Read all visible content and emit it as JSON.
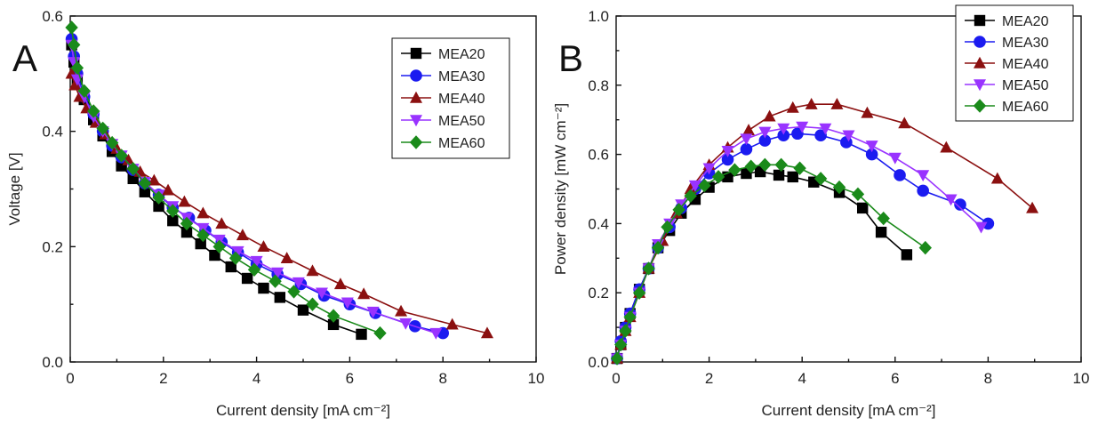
{
  "chart_data": [
    {
      "type": "line",
      "panel_label": "A",
      "xlabel": "Current density [mA cm⁻²]",
      "ylabel": "Voltage [V]",
      "xlim": [
        0,
        10
      ],
      "ylim": [
        0,
        0.6
      ],
      "xticks": [
        "0",
        "2",
        "4",
        "6",
        "8",
        "10"
      ],
      "yticks": [
        "0.0",
        "0.2",
        "0.4",
        "0.6"
      ],
      "legend_position": "top-right",
      "grid": false,
      "series": [
        {
          "name": "MEA20",
          "color": "#000000",
          "marker": "square",
          "points": [
            [
              0.03,
              0.55
            ],
            [
              0.08,
              0.52
            ],
            [
              0.15,
              0.49
            ],
            [
              0.3,
              0.455
            ],
            [
              0.5,
              0.42
            ],
            [
              0.7,
              0.392
            ],
            [
              0.9,
              0.365
            ],
            [
              1.1,
              0.34
            ],
            [
              1.35,
              0.318
            ],
            [
              1.6,
              0.295
            ],
            [
              1.9,
              0.27
            ],
            [
              2.2,
              0.245
            ],
            [
              2.5,
              0.225
            ],
            [
              2.8,
              0.205
            ],
            [
              3.1,
              0.185
            ],
            [
              3.45,
              0.165
            ],
            [
              3.8,
              0.145
            ],
            [
              4.15,
              0.128
            ],
            [
              4.5,
              0.112
            ],
            [
              5.0,
              0.09
            ],
            [
              5.65,
              0.065
            ],
            [
              6.25,
              0.048
            ]
          ]
        },
        {
          "name": "MEA30",
          "color": "#1b1bf0",
          "marker": "circle",
          "points": [
            [
              0.03,
              0.56
            ],
            [
              0.08,
              0.53
            ],
            [
              0.15,
              0.5
            ],
            [
              0.3,
              0.46
            ],
            [
              0.5,
              0.43
            ],
            [
              0.7,
              0.4
            ],
            [
              0.9,
              0.375
            ],
            [
              1.1,
              0.355
            ],
            [
              1.35,
              0.333
            ],
            [
              1.6,
              0.31
            ],
            [
              1.9,
              0.29
            ],
            [
              2.2,
              0.268
            ],
            [
              2.55,
              0.25
            ],
            [
              2.9,
              0.228
            ],
            [
              3.25,
              0.208
            ],
            [
              3.6,
              0.19
            ],
            [
              4.0,
              0.17
            ],
            [
              4.45,
              0.152
            ],
            [
              4.95,
              0.135
            ],
            [
              5.45,
              0.115
            ],
            [
              6.0,
              0.1
            ],
            [
              6.55,
              0.085
            ],
            [
              7.4,
              0.062
            ],
            [
              8.0,
              0.05
            ]
          ]
        },
        {
          "name": "MEA40",
          "color": "#8b1010",
          "marker": "triangle",
          "points": [
            [
              0.03,
              0.5
            ],
            [
              0.1,
              0.48
            ],
            [
              0.2,
              0.46
            ],
            [
              0.35,
              0.44
            ],
            [
              0.55,
              0.415
            ],
            [
              0.75,
              0.395
            ],
            [
              1.0,
              0.37
            ],
            [
              1.25,
              0.35
            ],
            [
              1.5,
              0.33
            ],
            [
              1.8,
              0.315
            ],
            [
              2.1,
              0.298
            ],
            [
              2.45,
              0.278
            ],
            [
              2.85,
              0.258
            ],
            [
              3.25,
              0.24
            ],
            [
              3.7,
              0.22
            ],
            [
              4.15,
              0.2
            ],
            [
              4.65,
              0.18
            ],
            [
              5.2,
              0.158
            ],
            [
              5.8,
              0.135
            ],
            [
              6.3,
              0.118
            ],
            [
              7.1,
              0.088
            ],
            [
              8.2,
              0.065
            ],
            [
              8.95,
              0.05
            ]
          ]
        },
        {
          "name": "MEA50",
          "color": "#9933ff",
          "marker": "triangle-down",
          "points": [
            [
              0.03,
              0.55
            ],
            [
              0.08,
              0.52
            ],
            [
              0.15,
              0.49
            ],
            [
              0.3,
              0.46
            ],
            [
              0.5,
              0.425
            ],
            [
              0.7,
              0.4
            ],
            [
              0.9,
              0.378
            ],
            [
              1.1,
              0.358
            ],
            [
              1.35,
              0.335
            ],
            [
              1.6,
              0.312
            ],
            [
              1.9,
              0.29
            ],
            [
              2.2,
              0.27
            ],
            [
              2.5,
              0.25
            ],
            [
              2.85,
              0.232
            ],
            [
              3.2,
              0.212
            ],
            [
              3.6,
              0.192
            ],
            [
              4.0,
              0.175
            ],
            [
              4.45,
              0.155
            ],
            [
              4.9,
              0.138
            ],
            [
              5.4,
              0.12
            ],
            [
              5.95,
              0.103
            ],
            [
              6.5,
              0.087
            ],
            [
              7.2,
              0.067
            ],
            [
              7.85,
              0.05
            ]
          ]
        },
        {
          "name": "MEA60",
          "color": "#1a8a1a",
          "marker": "diamond",
          "points": [
            [
              0.03,
              0.58
            ],
            [
              0.08,
              0.55
            ],
            [
              0.15,
              0.51
            ],
            [
              0.3,
              0.47
            ],
            [
              0.5,
              0.435
            ],
            [
              0.7,
              0.405
            ],
            [
              0.9,
              0.38
            ],
            [
              1.1,
              0.358
            ],
            [
              1.35,
              0.335
            ],
            [
              1.6,
              0.31
            ],
            [
              1.9,
              0.285
            ],
            [
              2.2,
              0.262
            ],
            [
              2.5,
              0.24
            ],
            [
              2.85,
              0.22
            ],
            [
              3.2,
              0.2
            ],
            [
              3.55,
              0.18
            ],
            [
              3.95,
              0.16
            ],
            [
              4.4,
              0.14
            ],
            [
              4.8,
              0.122
            ],
            [
              5.2,
              0.1
            ],
            [
              5.65,
              0.08
            ],
            [
              6.65,
              0.05
            ]
          ]
        }
      ]
    },
    {
      "type": "line",
      "panel_label": "B",
      "xlabel": "Current density [mA cm⁻²]",
      "ylabel": "Power density [mW cm⁻²]",
      "xlim": [
        0,
        10
      ],
      "ylim": [
        0,
        1.0
      ],
      "xticks": [
        "0",
        "2",
        "4",
        "6",
        "8",
        "10"
      ],
      "yticks": [
        "0.0",
        "0.2",
        "0.4",
        "0.6",
        "0.8",
        "1.0"
      ],
      "legend_position": "top-right",
      "grid": false,
      "series": [
        {
          "name": "MEA20",
          "color": "#000000",
          "marker": "square",
          "points": [
            [
              0.02,
              0.01
            ],
            [
              0.1,
              0.05
            ],
            [
              0.2,
              0.1
            ],
            [
              0.3,
              0.14
            ],
            [
              0.5,
              0.21
            ],
            [
              0.7,
              0.27
            ],
            [
              0.9,
              0.33
            ],
            [
              1.15,
              0.38
            ],
            [
              1.4,
              0.43
            ],
            [
              1.7,
              0.47
            ],
            [
              2.0,
              0.505
            ],
            [
              2.4,
              0.535
            ],
            [
              2.8,
              0.545
            ],
            [
              3.1,
              0.55
            ],
            [
              3.5,
              0.54
            ],
            [
              3.8,
              0.535
            ],
            [
              4.25,
              0.52
            ],
            [
              4.8,
              0.49
            ],
            [
              5.3,
              0.445
            ],
            [
              5.7,
              0.375
            ],
            [
              6.25,
              0.31
            ]
          ]
        },
        {
          "name": "MEA30",
          "color": "#1b1bf0",
          "marker": "circle",
          "points": [
            [
              0.02,
              0.01
            ],
            [
              0.1,
              0.06
            ],
            [
              0.2,
              0.1
            ],
            [
              0.3,
              0.14
            ],
            [
              0.5,
              0.21
            ],
            [
              0.7,
              0.27
            ],
            [
              0.9,
              0.33
            ],
            [
              1.15,
              0.39
            ],
            [
              1.4,
              0.445
            ],
            [
              1.7,
              0.5
            ],
            [
              2.0,
              0.545
            ],
            [
              2.4,
              0.585
            ],
            [
              2.8,
              0.615
            ],
            [
              3.2,
              0.64
            ],
            [
              3.6,
              0.655
            ],
            [
              3.9,
              0.66
            ],
            [
              4.4,
              0.655
            ],
            [
              4.95,
              0.635
            ],
            [
              5.5,
              0.6
            ],
            [
              6.1,
              0.54
            ],
            [
              6.6,
              0.495
            ],
            [
              7.4,
              0.455
            ],
            [
              8.0,
              0.4
            ]
          ]
        },
        {
          "name": "MEA40",
          "color": "#8b1010",
          "marker": "triangle",
          "points": [
            [
              0.02,
              0.01
            ],
            [
              0.1,
              0.05
            ],
            [
              0.2,
              0.09
            ],
            [
              0.3,
              0.13
            ],
            [
              0.5,
              0.2
            ],
            [
              0.7,
              0.27
            ],
            [
              1.0,
              0.35
            ],
            [
              1.3,
              0.43
            ],
            [
              1.6,
              0.5
            ],
            [
              2.0,
              0.57
            ],
            [
              2.4,
              0.62
            ],
            [
              2.85,
              0.67
            ],
            [
              3.3,
              0.71
            ],
            [
              3.8,
              0.735
            ],
            [
              4.2,
              0.745
            ],
            [
              4.75,
              0.745
            ],
            [
              5.4,
              0.72
            ],
            [
              6.2,
              0.69
            ],
            [
              7.1,
              0.62
            ],
            [
              8.2,
              0.53
            ],
            [
              8.95,
              0.445
            ]
          ]
        },
        {
          "name": "MEA50",
          "color": "#9933ff",
          "marker": "triangle-down",
          "points": [
            [
              0.02,
              0.01
            ],
            [
              0.1,
              0.05
            ],
            [
              0.2,
              0.09
            ],
            [
              0.3,
              0.13
            ],
            [
              0.5,
              0.2
            ],
            [
              0.7,
              0.27
            ],
            [
              0.9,
              0.34
            ],
            [
              1.15,
              0.4
            ],
            [
              1.4,
              0.455
            ],
            [
              1.7,
              0.51
            ],
            [
              2.0,
              0.56
            ],
            [
              2.4,
              0.61
            ],
            [
              2.8,
              0.645
            ],
            [
              3.2,
              0.665
            ],
            [
              3.6,
              0.675
            ],
            [
              4.0,
              0.68
            ],
            [
              4.5,
              0.675
            ],
            [
              5.0,
              0.655
            ],
            [
              5.5,
              0.625
            ],
            [
              6.0,
              0.59
            ],
            [
              6.6,
              0.54
            ],
            [
              7.2,
              0.47
            ],
            [
              7.85,
              0.39
            ]
          ]
        },
        {
          "name": "MEA60",
          "color": "#1a8a1a",
          "marker": "diamond",
          "points": [
            [
              0.02,
              0.01
            ],
            [
              0.1,
              0.05
            ],
            [
              0.2,
              0.09
            ],
            [
              0.3,
              0.13
            ],
            [
              0.5,
              0.2
            ],
            [
              0.7,
              0.27
            ],
            [
              0.9,
              0.33
            ],
            [
              1.1,
              0.39
            ],
            [
              1.35,
              0.44
            ],
            [
              1.6,
              0.48
            ],
            [
              1.9,
              0.51
            ],
            [
              2.2,
              0.535
            ],
            [
              2.55,
              0.555
            ],
            [
              2.9,
              0.565
            ],
            [
              3.2,
              0.57
            ],
            [
              3.55,
              0.57
            ],
            [
              3.95,
              0.56
            ],
            [
              4.4,
              0.53
            ],
            [
              4.8,
              0.505
            ],
            [
              5.2,
              0.485
            ],
            [
              5.75,
              0.415
            ],
            [
              6.65,
              0.33
            ]
          ]
        }
      ]
    }
  ]
}
